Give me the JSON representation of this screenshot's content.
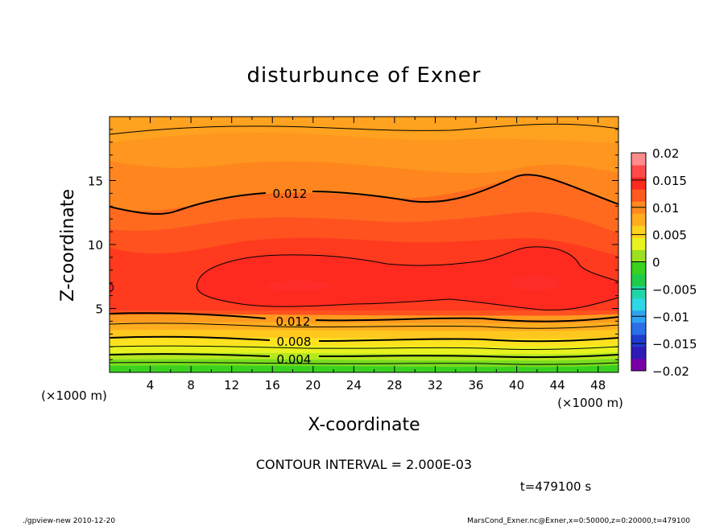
{
  "chart_data": {
    "type": "heatmap",
    "title": "disturbunce of Exner",
    "xlabel": "X-coordinate",
    "ylabel": "Z-coordinate",
    "xunit_left": "(×1000 m)",
    "xunit_right": "(×1000 m)",
    "xlim": [
      0,
      50
    ],
    "ylim": [
      0,
      20
    ],
    "xticks": [
      4,
      8,
      12,
      16,
      20,
      24,
      28,
      32,
      36,
      40,
      44,
      48
    ],
    "yticks": [
      5,
      10,
      15
    ],
    "grid": false,
    "colorbar": {
      "levels": [
        -0.02,
        -0.015,
        -0.01,
        -0.005,
        0,
        0.005,
        0.01,
        0.015,
        0.02
      ],
      "labels": [
        "0.02",
        "0.015",
        "0.01",
        "0.005",
        "0",
        "−0.005",
        "−0.01",
        "−0.015",
        "−0.02"
      ],
      "colors": [
        "#7a00a8",
        "#2f1ab8",
        "#1f3ccf",
        "#2a6fe6",
        "#2fa3f2",
        "#2fd6e6",
        "#1fd6a8",
        "#1fcc4a",
        "#3ad11f",
        "#9ae01f",
        "#e8f21f",
        "#ffd21f",
        "#ffad1f",
        "#ff8a1f",
        "#ff5a1f",
        "#ff2a1f",
        "#ff4a4a",
        "#ff8c8c"
      ]
    },
    "contour_labels": [
      {
        "value": "0.012",
        "x": 20,
        "z": 14.2
      },
      {
        "value": "0.012",
        "x": 20,
        "z": 3.9
      },
      {
        "value": "0.008",
        "x": 20,
        "z": 2.5
      },
      {
        "value": "0.004",
        "x": 20,
        "z": 1.0
      }
    ],
    "field_bands": [
      {
        "z_top": 0.5,
        "color": "#3ad11f"
      },
      {
        "z_top": 1.0,
        "color": "#78dc1f"
      },
      {
        "z_top": 1.5,
        "color": "#b4e81f"
      },
      {
        "z_top": 2.1,
        "color": "#e8f21f"
      },
      {
        "z_top": 2.7,
        "color": "#ffe21f"
      },
      {
        "z_top": 3.3,
        "color": "#ffc81f"
      },
      {
        "z_top": 3.9,
        "color": "#ffad1f"
      },
      {
        "z_top": 4.5,
        "color": "#ff9a1f"
      }
    ]
  },
  "footer": {
    "contour_interval": "CONTOUR INTERVAL = 2.000E-03",
    "time": "t=479100 s",
    "program": "./gpview-new   2010-12-20",
    "source": "MarsCond_Exner.nc@Exner,x=0:50000,z=0:20000,t=479100"
  }
}
